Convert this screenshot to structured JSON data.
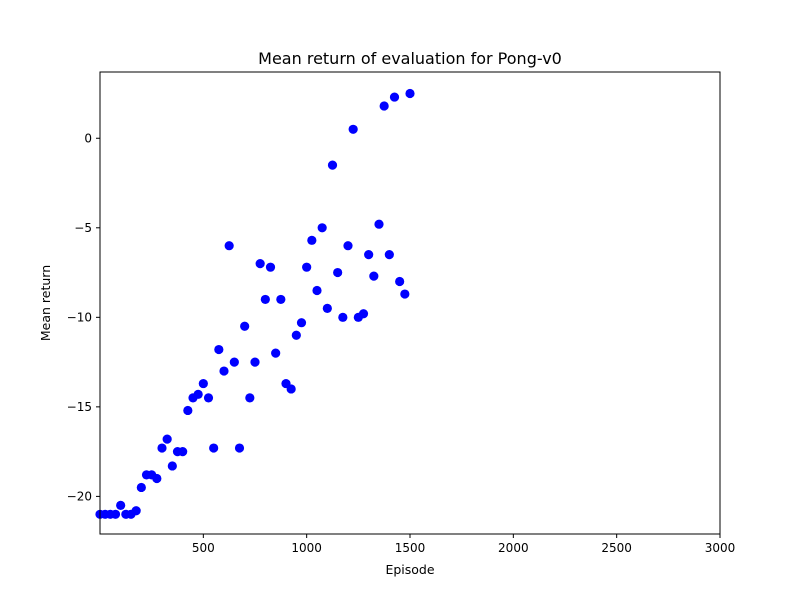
{
  "chart_data": {
    "type": "scatter",
    "title": "Mean return of evaluation for Pong-v0",
    "xlabel": "Episode",
    "ylabel": "Mean return",
    "xlim": [
      0,
      3000
    ],
    "ylim": [
      -22.1,
      3.7
    ],
    "xticks": [
      500,
      1000,
      1500,
      2000,
      2500,
      3000
    ],
    "xtick_labels": [
      "500",
      "1000",
      "1500",
      "2000",
      "2500",
      "3000"
    ],
    "yticks": [
      -20,
      -15,
      -10,
      -5,
      0
    ],
    "ytick_labels": [
      "−20",
      "−15",
      "−10",
      "−5",
      "0"
    ],
    "grid": false,
    "marker_color": "#0000ff",
    "series": [
      {
        "x": [
          0,
          25,
          50,
          75,
          100,
          125,
          150,
          175,
          200,
          225,
          250,
          275,
          300,
          325,
          350,
          375,
          400,
          425,
          450,
          475,
          500,
          525,
          550,
          575,
          600,
          625,
          650,
          675,
          700,
          725,
          750,
          775,
          800,
          825,
          850,
          875,
          900,
          925,
          950,
          975,
          1000,
          1025,
          1050,
          1075,
          1100,
          1125,
          1150,
          1175,
          1200,
          1225,
          1250,
          1275,
          1300,
          1325,
          1350,
          1375,
          1400,
          1425,
          1450,
          1475,
          1500
        ],
        "y": [
          -21,
          -21,
          -21,
          -21,
          -20.5,
          -21,
          -21,
          -20.8,
          -19.5,
          -18.8,
          -18.8,
          -19,
          -17.3,
          -16.8,
          -18.3,
          -17.5,
          -17.5,
          -15.2,
          -14.5,
          -14.3,
          -13.7,
          -14.5,
          -17.3,
          -11.8,
          -13,
          -6,
          -12.5,
          -17.3,
          -10.5,
          -14.5,
          -12.5,
          -7,
          -9,
          -7.2,
          -12,
          -9,
          -13.7,
          -14,
          -11,
          -10.3,
          -7.2,
          -5.7,
          -8.5,
          -5,
          -9.5,
          -1.5,
          -7.5,
          -10,
          -6,
          0.5,
          -10,
          -9.8,
          -6.5,
          -7.7,
          -4.8,
          1.8,
          -6.5,
          2.3,
          -8,
          -8.7,
          2.5
        ]
      }
    ]
  }
}
